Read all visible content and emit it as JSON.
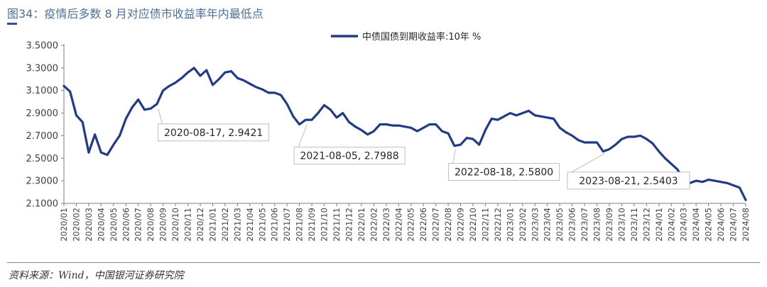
{
  "header": {
    "title": "图34：疫情后多数 8 月对应债市收益率年内最低点"
  },
  "source": "资料来源：Wind，中国银河证券研究院",
  "colors": {
    "series": "#1f3a93",
    "title": "#4a6fa5",
    "annotation_border": "#bdbdbd"
  },
  "chart_data": {
    "type": "line",
    "title": "",
    "xlabel": "",
    "ylabel": "",
    "ylim": [
      2.1,
      3.5
    ],
    "yticks": [
      "3.5000",
      "3.3000",
      "3.1000",
      "2.9000",
      "2.7000",
      "2.5000",
      "2.3000",
      "2.1000"
    ],
    "grid": false,
    "legend": "top-center",
    "x_tick_labels": [
      "2020/01",
      "2020/02",
      "2020/03",
      "2020/04",
      "2020/05",
      "2020/06",
      "2020/07",
      "2020/08",
      "2020/09",
      "2020/10",
      "2020/11",
      "2020/12",
      "2021/01",
      "2021/02",
      "2021/03",
      "2021/04",
      "2021/05",
      "2021/06",
      "2021/07",
      "2021/08",
      "2021/09",
      "2021/10",
      "2021/11",
      "2021/12",
      "2022/01",
      "2022/02",
      "2022/03",
      "2022/04",
      "2022/05",
      "2022/06",
      "2022/07",
      "2022/08",
      "2022/09",
      "2022/10",
      "2022/11",
      "2022/12",
      "2023/01",
      "2023/02",
      "2023/03",
      "2023/04",
      "2023/05",
      "2023/06",
      "2023/07",
      "2023/08",
      "2023/09",
      "2023/10",
      "2023/11",
      "2023/12",
      "2024/01",
      "2024/02",
      "2024/03",
      "2024/04",
      "2024/05",
      "2024/06",
      "2024/07",
      "2024/08"
    ],
    "series": [
      {
        "name": "中债国债到期收益率:10年 %",
        "x": [
          "2020/01",
          "2020/01",
          "2020/02",
          "2020/02",
          "2020/03",
          "2020/03",
          "2020/04",
          "2020/04",
          "2020/05",
          "2020/05",
          "2020/06",
          "2020/06",
          "2020/07",
          "2020/07",
          "2020/08",
          "2020/08",
          "2020/09",
          "2020/09",
          "2020/10",
          "2020/10",
          "2020/11",
          "2020/11",
          "2020/12",
          "2020/12",
          "2021/01",
          "2021/01",
          "2021/02",
          "2021/02",
          "2021/03",
          "2021/03",
          "2021/04",
          "2021/04",
          "2021/05",
          "2021/05",
          "2021/06",
          "2021/06",
          "2021/07",
          "2021/07",
          "2021/08",
          "2021/08",
          "2021/09",
          "2021/09",
          "2021/10",
          "2021/10",
          "2021/11",
          "2021/11",
          "2021/12",
          "2021/12",
          "2022/01",
          "2022/01",
          "2022/02",
          "2022/02",
          "2022/03",
          "2022/03",
          "2022/04",
          "2022/04",
          "2022/05",
          "2022/05",
          "2022/06",
          "2022/06",
          "2022/07",
          "2022/07",
          "2022/08",
          "2022/08",
          "2022/09",
          "2022/09",
          "2022/10",
          "2022/10",
          "2022/11",
          "2022/11",
          "2022/12",
          "2022/12",
          "2023/01",
          "2023/01",
          "2023/02",
          "2023/02",
          "2023/03",
          "2023/03",
          "2023/04",
          "2023/04",
          "2023/05",
          "2023/05",
          "2023/06",
          "2023/06",
          "2023/07",
          "2023/07",
          "2023/08",
          "2023/08",
          "2023/09",
          "2023/09",
          "2023/10",
          "2023/10",
          "2023/11",
          "2023/11",
          "2023/12",
          "2023/12",
          "2024/01",
          "2024/01",
          "2024/02",
          "2024/02",
          "2024/03",
          "2024/03",
          "2024/04",
          "2024/04",
          "2024/05",
          "2024/05",
          "2024/06",
          "2024/06",
          "2024/07",
          "2024/07",
          "2024/08"
        ],
        "values": [
          3.14,
          3.09,
          2.88,
          2.82,
          2.55,
          2.71,
          2.55,
          2.53,
          2.62,
          2.7,
          2.85,
          2.95,
          3.02,
          2.93,
          2.94,
          2.98,
          3.1,
          3.14,
          3.17,
          3.21,
          3.26,
          3.3,
          3.23,
          3.28,
          3.15,
          3.2,
          3.26,
          3.27,
          3.21,
          3.19,
          3.16,
          3.13,
          3.11,
          3.08,
          3.08,
          3.06,
          2.98,
          2.87,
          2.8,
          2.84,
          2.84,
          2.9,
          2.97,
          2.93,
          2.86,
          2.9,
          2.82,
          2.78,
          2.75,
          2.71,
          2.74,
          2.8,
          2.8,
          2.79,
          2.79,
          2.78,
          2.77,
          2.74,
          2.77,
          2.8,
          2.8,
          2.74,
          2.72,
          2.61,
          2.62,
          2.68,
          2.67,
          2.62,
          2.75,
          2.85,
          2.84,
          2.87,
          2.9,
          2.88,
          2.9,
          2.92,
          2.88,
          2.87,
          2.86,
          2.85,
          2.77,
          2.73,
          2.7,
          2.66,
          2.64,
          2.64,
          2.64,
          2.56,
          2.58,
          2.62,
          2.67,
          2.69,
          2.69,
          2.7,
          2.67,
          2.63,
          2.56,
          2.5,
          2.45,
          2.4,
          2.3,
          2.28,
          2.3,
          2.29,
          2.31,
          2.3,
          2.29,
          2.28,
          2.26,
          2.24,
          2.13
        ]
      }
    ],
    "annotations": [
      {
        "label": "2020-08-17, 2.9421",
        "x": "2020/08",
        "y": 2.9421
      },
      {
        "label": "2021-08-05, 2.7988",
        "x": "2021/08",
        "y": 2.7988
      },
      {
        "label": "2022-08-18, 2.5800",
        "x": "2022/08",
        "y": 2.58
      },
      {
        "label": "2023-08-21, 2.5403",
        "x": "2023/08",
        "y": 2.5403
      }
    ]
  }
}
